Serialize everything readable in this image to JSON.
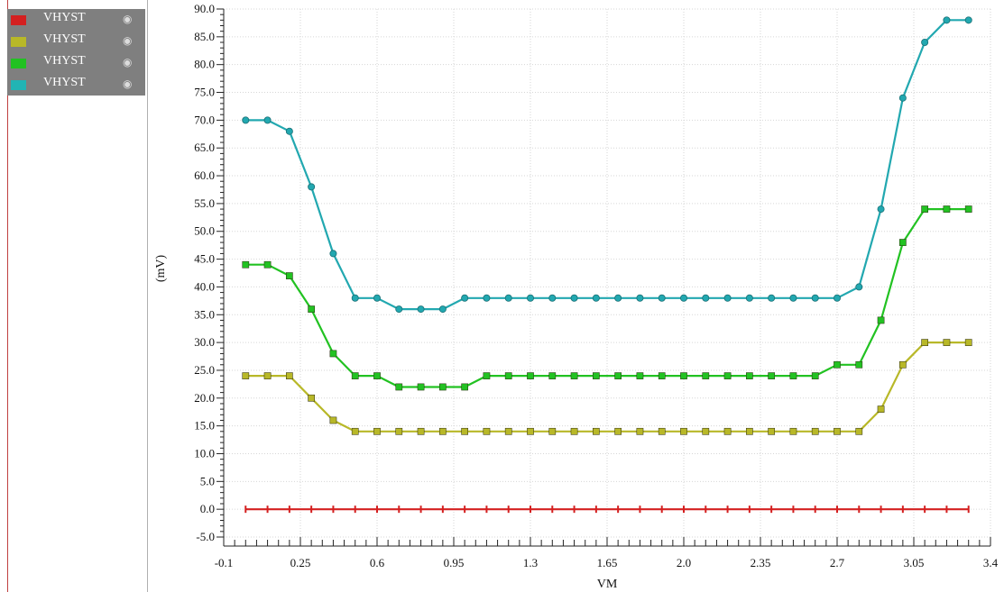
{
  "legend": {
    "items": [
      {
        "label": "VHYST",
        "color": "#d42020"
      },
      {
        "label": "VHYST",
        "color": "#b8b828"
      },
      {
        "label": "VHYST",
        "color": "#22c222"
      },
      {
        "label": "VHYST",
        "color": "#22b4b4"
      }
    ],
    "eye_glyph": "👁"
  },
  "chart_data": {
    "type": "line",
    "xlabel": "VM",
    "ylabel": "(mV)",
    "xlim": [
      -0.1,
      3.4
    ],
    "ylim": [
      -5.0,
      90.0
    ],
    "x_ticks": [
      "-0.1",
      "0.25",
      "0.6",
      "0.95",
      "1.3",
      "1.65",
      "2.0",
      "2.35",
      "2.7",
      "3.05",
      "3.4"
    ],
    "y_ticks": [
      "-5.0",
      "0.0",
      "5.0",
      "10.0",
      "15.0",
      "20.0",
      "25.0",
      "30.0",
      "35.0",
      "40.0",
      "45.0",
      "50.0",
      "55.0",
      "60.0",
      "65.0",
      "70.0",
      "75.0",
      "80.0",
      "85.0",
      "90.0"
    ],
    "grid": true,
    "x": [
      0.0,
      0.1,
      0.2,
      0.3,
      0.4,
      0.5,
      0.6,
      0.7,
      0.8,
      0.9,
      1.0,
      1.1,
      1.2,
      1.3,
      1.4,
      1.5,
      1.6,
      1.7,
      1.8,
      1.9,
      2.0,
      2.1,
      2.2,
      2.3,
      2.4,
      2.5,
      2.6,
      2.7,
      2.8,
      2.9,
      3.0,
      3.1,
      3.2,
      3.3
    ],
    "series": [
      {
        "name": "VHYST",
        "color": "#d42020",
        "marker": "plus",
        "values": [
          0,
          0,
          0,
          0,
          0,
          0,
          0,
          0,
          0,
          0,
          0,
          0,
          0,
          0,
          0,
          0,
          0,
          0,
          0,
          0,
          0,
          0,
          0,
          0,
          0,
          0,
          0,
          0,
          0,
          0,
          0,
          0,
          0,
          0
        ]
      },
      {
        "name": "VHYST",
        "color": "#b8b828",
        "marker": "square",
        "values": [
          24,
          24,
          24,
          20,
          16,
          14,
          14,
          14,
          14,
          14,
          14,
          14,
          14,
          14,
          14,
          14,
          14,
          14,
          14,
          14,
          14,
          14,
          14,
          14,
          14,
          14,
          14,
          14,
          14,
          18,
          26,
          30,
          30,
          30
        ]
      },
      {
        "name": "VHYST",
        "color": "#22c222",
        "marker": "square",
        "values": [
          44,
          44,
          42,
          36,
          28,
          24,
          24,
          22,
          22,
          22,
          22,
          24,
          24,
          24,
          24,
          24,
          24,
          24,
          24,
          24,
          24,
          24,
          24,
          24,
          24,
          24,
          24,
          26,
          26,
          34,
          48,
          54,
          54,
          54
        ]
      },
      {
        "name": "VHYST",
        "color": "#22a8b0",
        "marker": "circle",
        "values": [
          70,
          70,
          68,
          58,
          46,
          38,
          38,
          36,
          36,
          36,
          38,
          38,
          38,
          38,
          38,
          38,
          38,
          38,
          38,
          38,
          38,
          38,
          38,
          38,
          38,
          38,
          38,
          38,
          40,
          54,
          74,
          84,
          88,
          88
        ]
      }
    ]
  }
}
